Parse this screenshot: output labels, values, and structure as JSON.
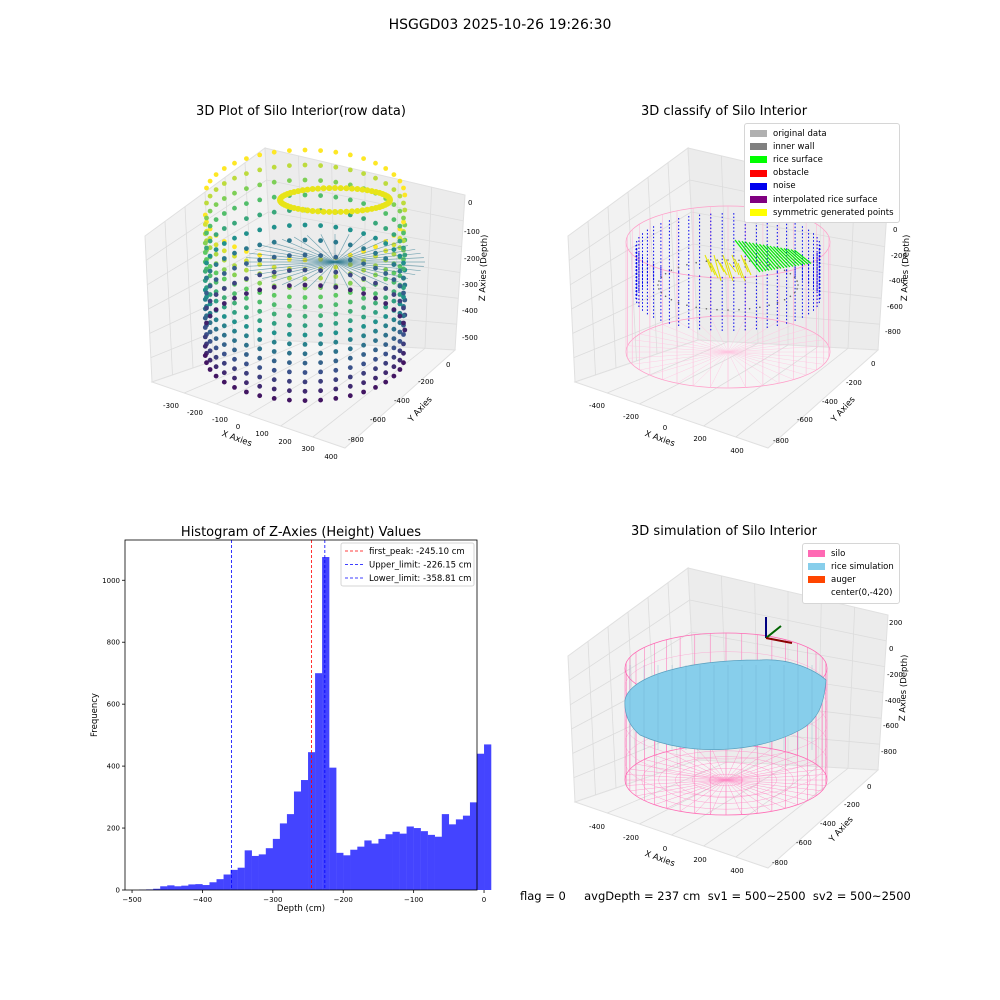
{
  "suptitle": "HSGGD03 2025-10-26 19:26:30",
  "footer": "flag = 0     avgDepth = 237 cm  sv1 = 500~2500  sv2 = 500~2500",
  "panels": {
    "raw": {
      "title": "3D Plot of Silo Interior(row data)",
      "x_label": "X Axies",
      "y_label": "Y Axies",
      "z_label": "Z Axies (Depth)",
      "x_ticks": [
        "-300",
        "-200",
        "-100",
        "0",
        "100",
        "200",
        "300",
        "400"
      ],
      "y_ticks": [
        "0",
        "-200",
        "-400",
        "-600",
        "-800"
      ],
      "z_ticks": [
        "0",
        "-100",
        "-200",
        "-300",
        "-400",
        "-500"
      ]
    },
    "classify": {
      "title": "3D classify of Silo Interior",
      "x_label": "X Axies",
      "y_label": "Y Axies",
      "z_label": "Z Axies (Depth)",
      "x_ticks": [
        "-400",
        "-200",
        "0",
        "200",
        "400"
      ],
      "y_ticks": [
        "0",
        "-200",
        "-400",
        "-600",
        "-800"
      ],
      "z_ticks": [
        "0",
        "-200",
        "-400",
        "-600",
        "-800"
      ],
      "legend": [
        {
          "label": "original data",
          "color": "#b0b0b0"
        },
        {
          "label": "inner wall",
          "color": "#808080"
        },
        {
          "label": "rice surface",
          "color": "#00ff00"
        },
        {
          "label": "obstacle",
          "color": "#ff0000"
        },
        {
          "label": "noise",
          "color": "#0000ee"
        },
        {
          "label": "interpolated rice surface",
          "color": "#800080"
        },
        {
          "label": "symmetric generated points",
          "color": "#ffff00"
        }
      ]
    },
    "simulation": {
      "title": "3D simulation of Silo Interior",
      "x_label": "X Axies",
      "y_label": "Y Axies",
      "z_label": "Z Axies (Depth)",
      "x_ticks": [
        "-400",
        "-200",
        "0",
        "200",
        "400"
      ],
      "y_ticks": [
        "0",
        "-200",
        "-400",
        "-600",
        "-800"
      ],
      "z_ticks": [
        "200",
        "0",
        "-200",
        "-400",
        "-600",
        "-800"
      ],
      "legend": [
        {
          "label": "silo",
          "color": "#ff69b4"
        },
        {
          "label": "rice simulation",
          "color": "#87ceeb"
        },
        {
          "label": "auger",
          "color": "#ff4500"
        },
        {
          "label": "center(0,-420)",
          "color": ""
        }
      ]
    }
  },
  "chart_data": {
    "type": "bar",
    "title": "Histogram of Z-Axies (Height) Values",
    "xlabel": "Depth (cm)",
    "ylabel": "Frequency",
    "xlim": [
      -510,
      -10
    ],
    "ylim": [
      0,
      1130
    ],
    "x_ticks": [
      -500,
      -400,
      -300,
      -200,
      -100,
      0
    ],
    "y_ticks": [
      0,
      200,
      400,
      600,
      800,
      1000
    ],
    "bar_color": "#4444ff",
    "bins": [
      [
        -490,
        -480,
        1
      ],
      [
        -480,
        -470,
        2
      ],
      [
        -470,
        -460,
        4
      ],
      [
        -460,
        -450,
        12
      ],
      [
        -450,
        -440,
        15
      ],
      [
        -440,
        -430,
        12
      ],
      [
        -430,
        -420,
        14
      ],
      [
        -420,
        -410,
        18
      ],
      [
        -410,
        -400,
        19
      ],
      [
        -400,
        -390,
        16
      ],
      [
        -390,
        -380,
        25
      ],
      [
        -380,
        -370,
        35
      ],
      [
        -370,
        -360,
        50
      ],
      [
        -360,
        -350,
        65
      ],
      [
        -350,
        -340,
        72
      ],
      [
        -340,
        -330,
        128
      ],
      [
        -330,
        -320,
        110
      ],
      [
        -320,
        -310,
        115
      ],
      [
        -310,
        -300,
        135
      ],
      [
        -300,
        -290,
        165
      ],
      [
        -290,
        -280,
        215
      ],
      [
        -280,
        -270,
        245
      ],
      [
        -270,
        -260,
        318
      ],
      [
        -260,
        -250,
        355
      ],
      [
        -250,
        -240,
        445
      ],
      [
        -240,
        -230,
        700
      ],
      [
        -230,
        -220,
        1075
      ],
      [
        -220,
        -210,
        395
      ],
      [
        -210,
        -200,
        120
      ],
      [
        -200,
        -190,
        112
      ],
      [
        -190,
        -180,
        130
      ],
      [
        -180,
        -170,
        140
      ],
      [
        -170,
        -160,
        160
      ],
      [
        -160,
        -150,
        150
      ],
      [
        -150,
        -140,
        165
      ],
      [
        -140,
        -130,
        180
      ],
      [
        -130,
        -120,
        188
      ],
      [
        -120,
        -110,
        182
      ],
      [
        -110,
        -100,
        205
      ],
      [
        -100,
        -90,
        200
      ],
      [
        -90,
        -80,
        190
      ],
      [
        -80,
        -70,
        178
      ],
      [
        -70,
        -60,
        172
      ],
      [
        -60,
        -50,
        245
      ],
      [
        -50,
        -40,
        212
      ],
      [
        -40,
        -30,
        228
      ],
      [
        -30,
        -20,
        240
      ],
      [
        -20,
        -10,
        283
      ],
      [
        -10,
        0,
        440
      ],
      [
        0,
        10,
        470
      ]
    ],
    "lines": [
      {
        "label": "first_peak: -245.10 cm",
        "x": -245.1,
        "color": "#ff0000"
      },
      {
        "label": "Upper_limit: -226.15 cm",
        "x": -226.15,
        "color": "#0000ff"
      },
      {
        "label": "Lower_limit: -358.81 cm",
        "x": -358.81,
        "color": "#0000ff"
      }
    ]
  }
}
